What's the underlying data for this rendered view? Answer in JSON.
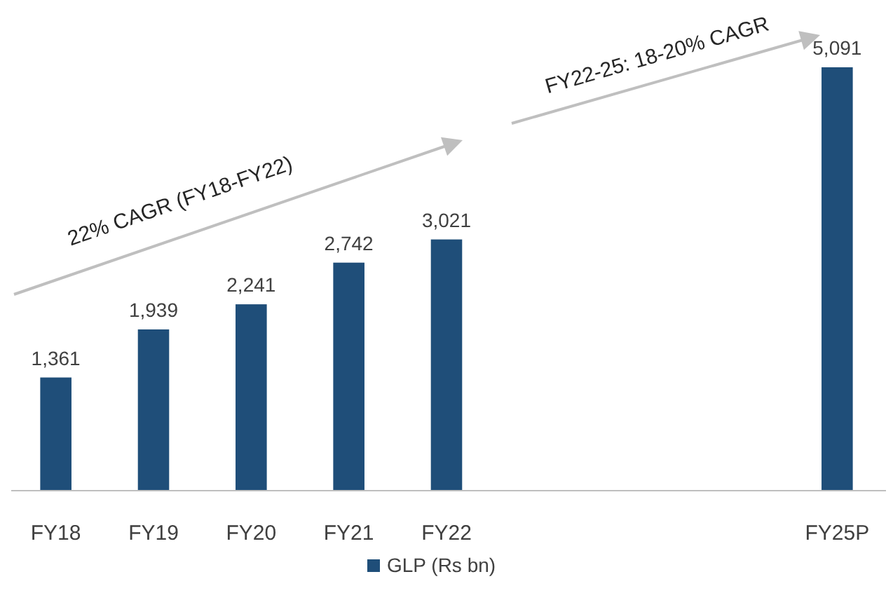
{
  "chart_data": {
    "type": "bar",
    "categories": [
      "FY18",
      "FY19",
      "FY20",
      "FY21",
      "FY22",
      null,
      null,
      null,
      "FY25P"
    ],
    "series": [
      {
        "name": "GLP (Rs bn)",
        "color": "#1f4e79",
        "values": [
          1361,
          1939,
          2241,
          2742,
          3021,
          null,
          null,
          null,
          5091
        ],
        "value_labels": [
          "1,361",
          "1,939",
          "2,241",
          "2,742",
          "3,021",
          null,
          null,
          null,
          "5,091"
        ]
      }
    ],
    "legend": "bottom",
    "annotations": [
      "22% CAGR (FY18-FY22)",
      "FY22-25: 18-20% CAGR"
    ]
  }
}
